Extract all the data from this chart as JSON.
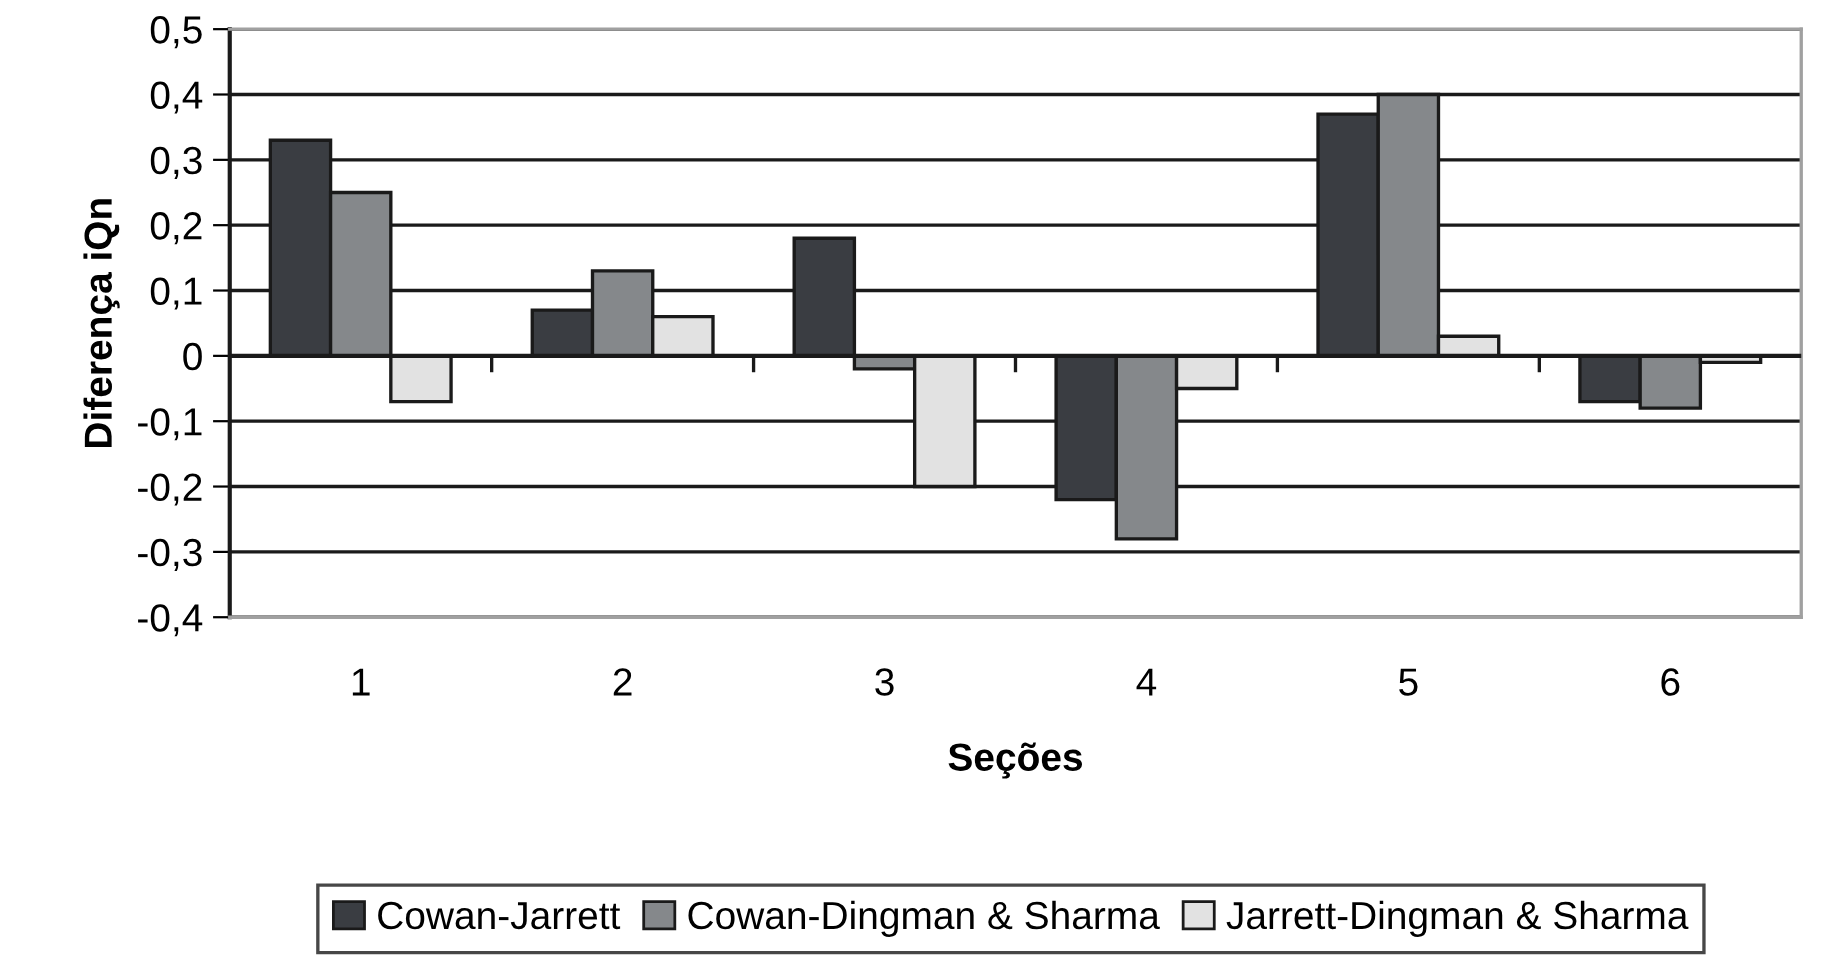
{
  "chart_data": {
    "type": "bar",
    "xlabel": "Seções",
    "ylabel": "Diferença iQn",
    "categories": [
      "1",
      "2",
      "3",
      "4",
      "5",
      "6"
    ],
    "series": [
      {
        "name": "Cowan-Jarrett",
        "color": "#3a3d42",
        "values": [
          0.33,
          0.07,
          0.18,
          -0.22,
          0.37,
          -0.07
        ]
      },
      {
        "name": "Cowan-Dingman & Sharma",
        "color": "#85888b",
        "values": [
          0.25,
          0.13,
          -0.02,
          -0.28,
          0.4,
          -0.08
        ]
      },
      {
        "name": "Jarrett-Dingman & Sharma",
        "color": "#e2e2e2",
        "values": [
          -0.07,
          0.06,
          -0.2,
          -0.05,
          0.03,
          -0.01
        ]
      }
    ],
    "ylim": [
      -0.4,
      0.5
    ],
    "yticks": [
      {
        "value": 0.5,
        "label": "0,5"
      },
      {
        "value": 0.4,
        "label": "0,4"
      },
      {
        "value": 0.3,
        "label": "0,3"
      },
      {
        "value": 0.2,
        "label": "0,2"
      },
      {
        "value": 0.1,
        "label": "0,1"
      },
      0,
      {
        "value": -0.1,
        "label": "-0,1"
      },
      {
        "value": -0.2,
        "label": "-0,2"
      },
      {
        "value": -0.3,
        "label": "-0,3"
      },
      {
        "value": -0.4,
        "label": "-0,4"
      }
    ],
    "grid": "y",
    "legend": "bottom"
  }
}
